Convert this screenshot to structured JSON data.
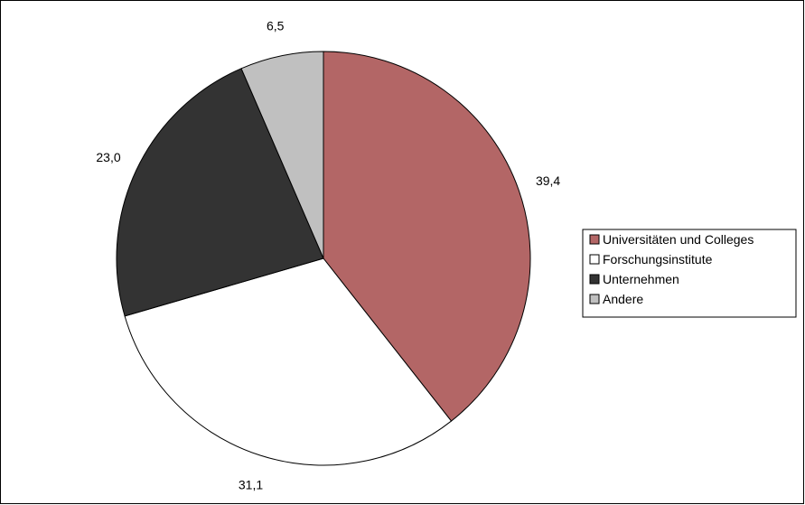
{
  "chart_data": {
    "type": "pie",
    "title": "",
    "start_angle_deg": 0,
    "direction": "clockwise",
    "slices": [
      {
        "label": "Universitäten und Colleges",
        "value": 39.4,
        "value_label": "39,4",
        "color": "#b36666"
      },
      {
        "label": "Forschungsinstitute",
        "value": 31.1,
        "value_label": "31,1",
        "color": "#ffffff"
      },
      {
        "label": "Unternehmen",
        "value": 23.0,
        "value_label": "23,0",
        "color": "#333333"
      },
      {
        "label": "Andere",
        "value": 6.5,
        "value_label": "6,5",
        "color": "#c0c0c0"
      }
    ],
    "legend": {
      "placement": "right",
      "entries": [
        "Universitäten und Colleges",
        "Forschungsinstitute",
        "Unternehmen",
        "Andere"
      ]
    }
  }
}
